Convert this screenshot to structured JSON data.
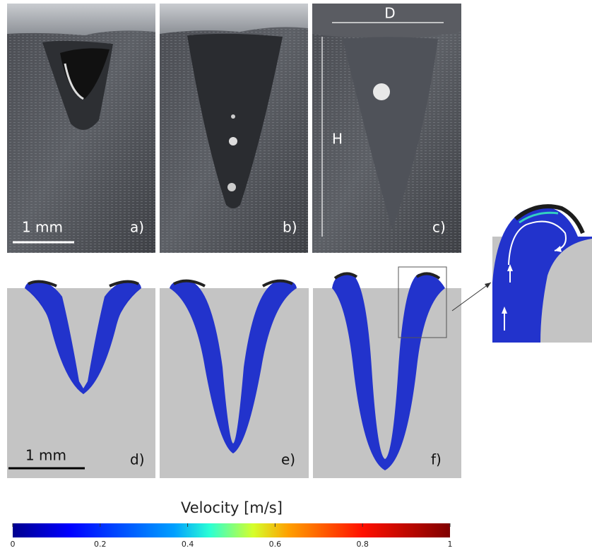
{
  "panels_top": [
    {
      "label": "a)"
    },
    {
      "label": "b)"
    },
    {
      "label": "c)"
    }
  ],
  "scale_bar_top": "1 mm",
  "dimension_labels": {
    "width": "D",
    "height": "H"
  },
  "panels_bottom": [
    {
      "label": "d)"
    },
    {
      "label": "e)"
    },
    {
      "label": "f)"
    }
  ],
  "scale_bar_bottom": "1 mm",
  "colorbar": {
    "title": "Velocity [m/s]",
    "ticks": [
      0,
      0.2,
      0.4,
      0.6,
      0.8,
      1
    ]
  }
}
